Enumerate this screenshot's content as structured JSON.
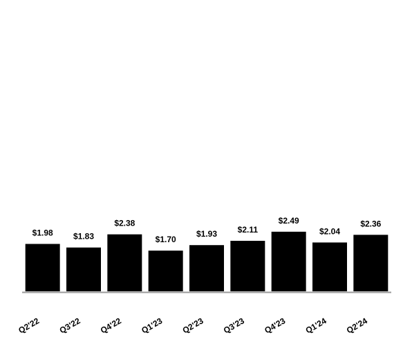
{
  "chart_data": {
    "type": "bar",
    "categories": [
      "Q2'22",
      "Q3'22",
      "Q4'22",
      "Q1'23",
      "Q2'23",
      "Q3'23",
      "Q4'23",
      "Q1'24",
      "Q2'24"
    ],
    "values": [
      1.98,
      1.83,
      2.38,
      1.7,
      1.93,
      2.11,
      2.49,
      2.04,
      2.36
    ],
    "value_labels": [
      "$1.98",
      "$1.83",
      "$2.38",
      "$1.70",
      "$1.93",
      "$2.11",
      "$2.49",
      "$2.04",
      "$2.36"
    ],
    "color": "#000000"
  }
}
